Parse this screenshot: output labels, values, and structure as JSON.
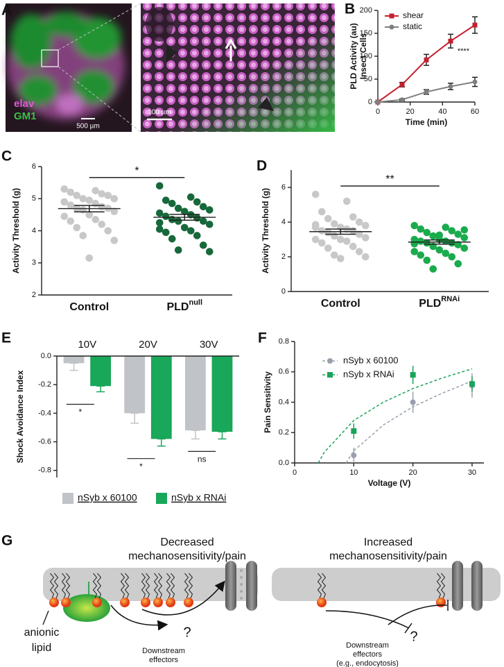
{
  "panel_labels": [
    "A",
    "B",
    "C",
    "D",
    "E",
    "F",
    "G"
  ],
  "micrograph": {
    "channels": [
      "elav",
      "GM1"
    ],
    "scale_bars": [
      "500 µm",
      "100 µm"
    ]
  },
  "chart_data": [
    {
      "type": "line",
      "xlabel": "Time (min)",
      "ylabel": [
        "PLD Activity (au)",
        "Insect Cells"
      ],
      "x": [
        0,
        15,
        30,
        45,
        60
      ],
      "xlim": [
        0,
        60
      ],
      "xticks": [
        0,
        20,
        40,
        60
      ],
      "ylim": [
        0,
        200
      ],
      "yticks": [
        0,
        50,
        100,
        150,
        200
      ],
      "annotation": "****",
      "legend": "upper left",
      "series": [
        {
          "name": "shear",
          "color": "#c4202f",
          "marker": "square",
          "values": [
            0,
            38,
            92,
            133,
            168
          ],
          "errors": [
            0,
            5,
            12,
            15,
            18
          ]
        },
        {
          "name": "static",
          "color": "#7f7f7f",
          "marker": "circle",
          "values": [
            0,
            5,
            22,
            34,
            44
          ],
          "errors": [
            0,
            2,
            5,
            7,
            10
          ]
        }
      ]
    },
    {
      "type": "strip",
      "ylabel": "Activity Threshold (g)",
      "ylim": [
        2,
        6
      ],
      "yticks": [
        2,
        3,
        4,
        5,
        6
      ],
      "significance": "*",
      "groups": [
        {
          "label": "Control",
          "color": "#c8c8c8",
          "mean": 4.69,
          "sem": 0.1,
          "values": [
            5.3,
            5.25,
            5.2,
            5.15,
            5.1,
            5.1,
            5.0,
            5.0,
            4.95,
            4.9,
            4.85,
            4.8,
            4.75,
            4.7,
            4.7,
            4.65,
            4.6,
            4.5,
            4.45,
            4.35,
            4.3,
            4.2,
            4.1,
            4.0,
            3.85,
            3.7,
            3.15,
            4.9
          ]
        },
        {
          "label": "PLD",
          "superscript": "null",
          "color": "#17683a",
          "mean": 4.42,
          "sem": 0.09,
          "values": [
            5.4,
            5.05,
            4.95,
            4.9,
            4.85,
            4.75,
            4.7,
            4.65,
            4.6,
            4.55,
            4.5,
            4.45,
            4.4,
            4.35,
            4.3,
            4.3,
            4.2,
            4.1,
            4.05,
            4.0,
            3.95,
            3.85,
            3.75,
            3.55,
            3.4,
            3.35,
            4.6,
            4.25
          ]
        }
      ]
    },
    {
      "type": "strip",
      "ylabel": "Activity Threshold (g)",
      "ylim": [
        0,
        7
      ],
      "yticks": [
        0,
        2,
        4,
        6
      ],
      "significance": "**",
      "groups": [
        {
          "label": "Control",
          "color": "#c8c8c8",
          "mean": 3.45,
          "sem": 0.15,
          "values": [
            5.6,
            5.2,
            4.6,
            4.3,
            4.2,
            4.0,
            3.9,
            3.8,
            3.7,
            3.7,
            3.6,
            3.5,
            3.5,
            3.4,
            3.3,
            3.2,
            3.1,
            3.0,
            3.0,
            2.9,
            2.8,
            2.6,
            2.5,
            2.3,
            2.1,
            2.0,
            1.9,
            3.85
          ]
        },
        {
          "label": "PLD",
          "superscript": "RNAi",
          "color": "#1aab4c",
          "mean": 2.85,
          "sem": 0.12,
          "values": [
            3.8,
            3.7,
            3.6,
            3.5,
            3.4,
            3.3,
            3.2,
            3.1,
            3.0,
            3.0,
            2.9,
            2.9,
            2.8,
            2.8,
            2.7,
            2.6,
            2.5,
            2.4,
            2.3,
            2.2,
            2.1,
            2.0,
            1.8,
            1.6,
            1.3,
            3.55,
            3.25,
            2.75
          ]
        }
      ]
    },
    {
      "type": "bar",
      "ylabel": "Shock Avoidance Index",
      "categories": [
        "10V",
        "20V",
        "30V"
      ],
      "ylim": [
        -0.85,
        0
      ],
      "yticks": [
        {
          "value": 0,
          "label": "0.0"
        },
        {
          "value": -0.2,
          "label": "-0.2"
        },
        {
          "value": -0.4,
          "label": "-0.4"
        },
        {
          "value": -0.6,
          "label": "-0.6"
        },
        {
          "value": -0.8,
          "label": "-0.8"
        }
      ],
      "significance": [
        "*",
        "*",
        "ns"
      ],
      "legend": "bottom",
      "series": [
        {
          "name": "nSyb x 60100",
          "color": "#c0c3c8",
          "values": [
            -0.05,
            -0.4,
            -0.52
          ],
          "errors": [
            0.05,
            0.07,
            0.06
          ]
        },
        {
          "name": "nSyb x RNAi",
          "color": "#19a75a",
          "values": [
            -0.21,
            -0.58,
            -0.53
          ],
          "errors": [
            0.04,
            0.05,
            0.05
          ]
        }
      ]
    },
    {
      "type": "scatter",
      "xlabel": "Voltage (V)",
      "ylabel": "Pain Sensitivity",
      "xlim": [
        0,
        32
      ],
      "xticks": [
        0,
        10,
        20,
        30
      ],
      "ylim": [
        0,
        0.8
      ],
      "yticks": [
        {
          "value": 0,
          "label": "0.0"
        },
        {
          "value": 0.2,
          "label": "0.2"
        },
        {
          "value": 0.4,
          "label": "0.4"
        },
        {
          "value": 0.6,
          "label": "0.6"
        },
        {
          "value": 0.8,
          "label": "0.8"
        }
      ],
      "legend": "upper left",
      "x": [
        10,
        20,
        30
      ],
      "series": [
        {
          "name": "nSyb x 60100",
          "color": "#9aa0ad",
          "marker": "circle",
          "values": [
            0.05,
            0.4,
            0.51
          ],
          "errors": [
            0.05,
            0.07,
            0.08
          ],
          "fit_x": [
            8.7,
            10,
            15,
            20,
            25,
            30
          ],
          "fit_y": [
            0,
            0.08,
            0.25,
            0.37,
            0.46,
            0.54
          ]
        },
        {
          "name": "nSyb x RNAi",
          "color": "#1aa35a",
          "marker": "square",
          "values": [
            0.21,
            0.58,
            0.52
          ],
          "errors": [
            0.05,
            0.06,
            0.05
          ],
          "fit_x": [
            4,
            5,
            10,
            15,
            20,
            25,
            30
          ],
          "fit_y": [
            0,
            0.07,
            0.28,
            0.4,
            0.49,
            0.56,
            0.62
          ]
        }
      ]
    }
  ],
  "diagram": {
    "left": {
      "title": [
        "Decreased",
        "mechanosensitivity/pain"
      ],
      "lipid_label": [
        "anionic",
        "lipid"
      ],
      "question": "?",
      "effectors": [
        "Downstream",
        "effectors"
      ]
    },
    "right": {
      "title": [
        "Increased",
        "mechanosensitivity/pain"
      ],
      "question": "?",
      "effectors": [
        "Downstream",
        "effectors",
        "(e.g., endocytosis)"
      ]
    }
  }
}
